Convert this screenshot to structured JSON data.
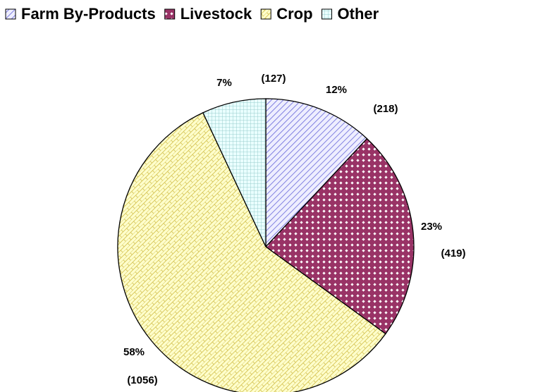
{
  "chart_data": {
    "type": "pie",
    "categories": [
      "Farm By-Products",
      "Livestock",
      "Crop",
      "Other"
    ],
    "values": [
      12,
      23,
      58,
      7
    ],
    "value_labels": [
      "12%",
      "23%",
      "58%",
      "7%"
    ],
    "counts": [
      218,
      419,
      1056,
      127
    ],
    "count_labels": [
      "(218)",
      "(419)",
      "(1056)",
      "(127)"
    ],
    "legend": "top"
  }
}
